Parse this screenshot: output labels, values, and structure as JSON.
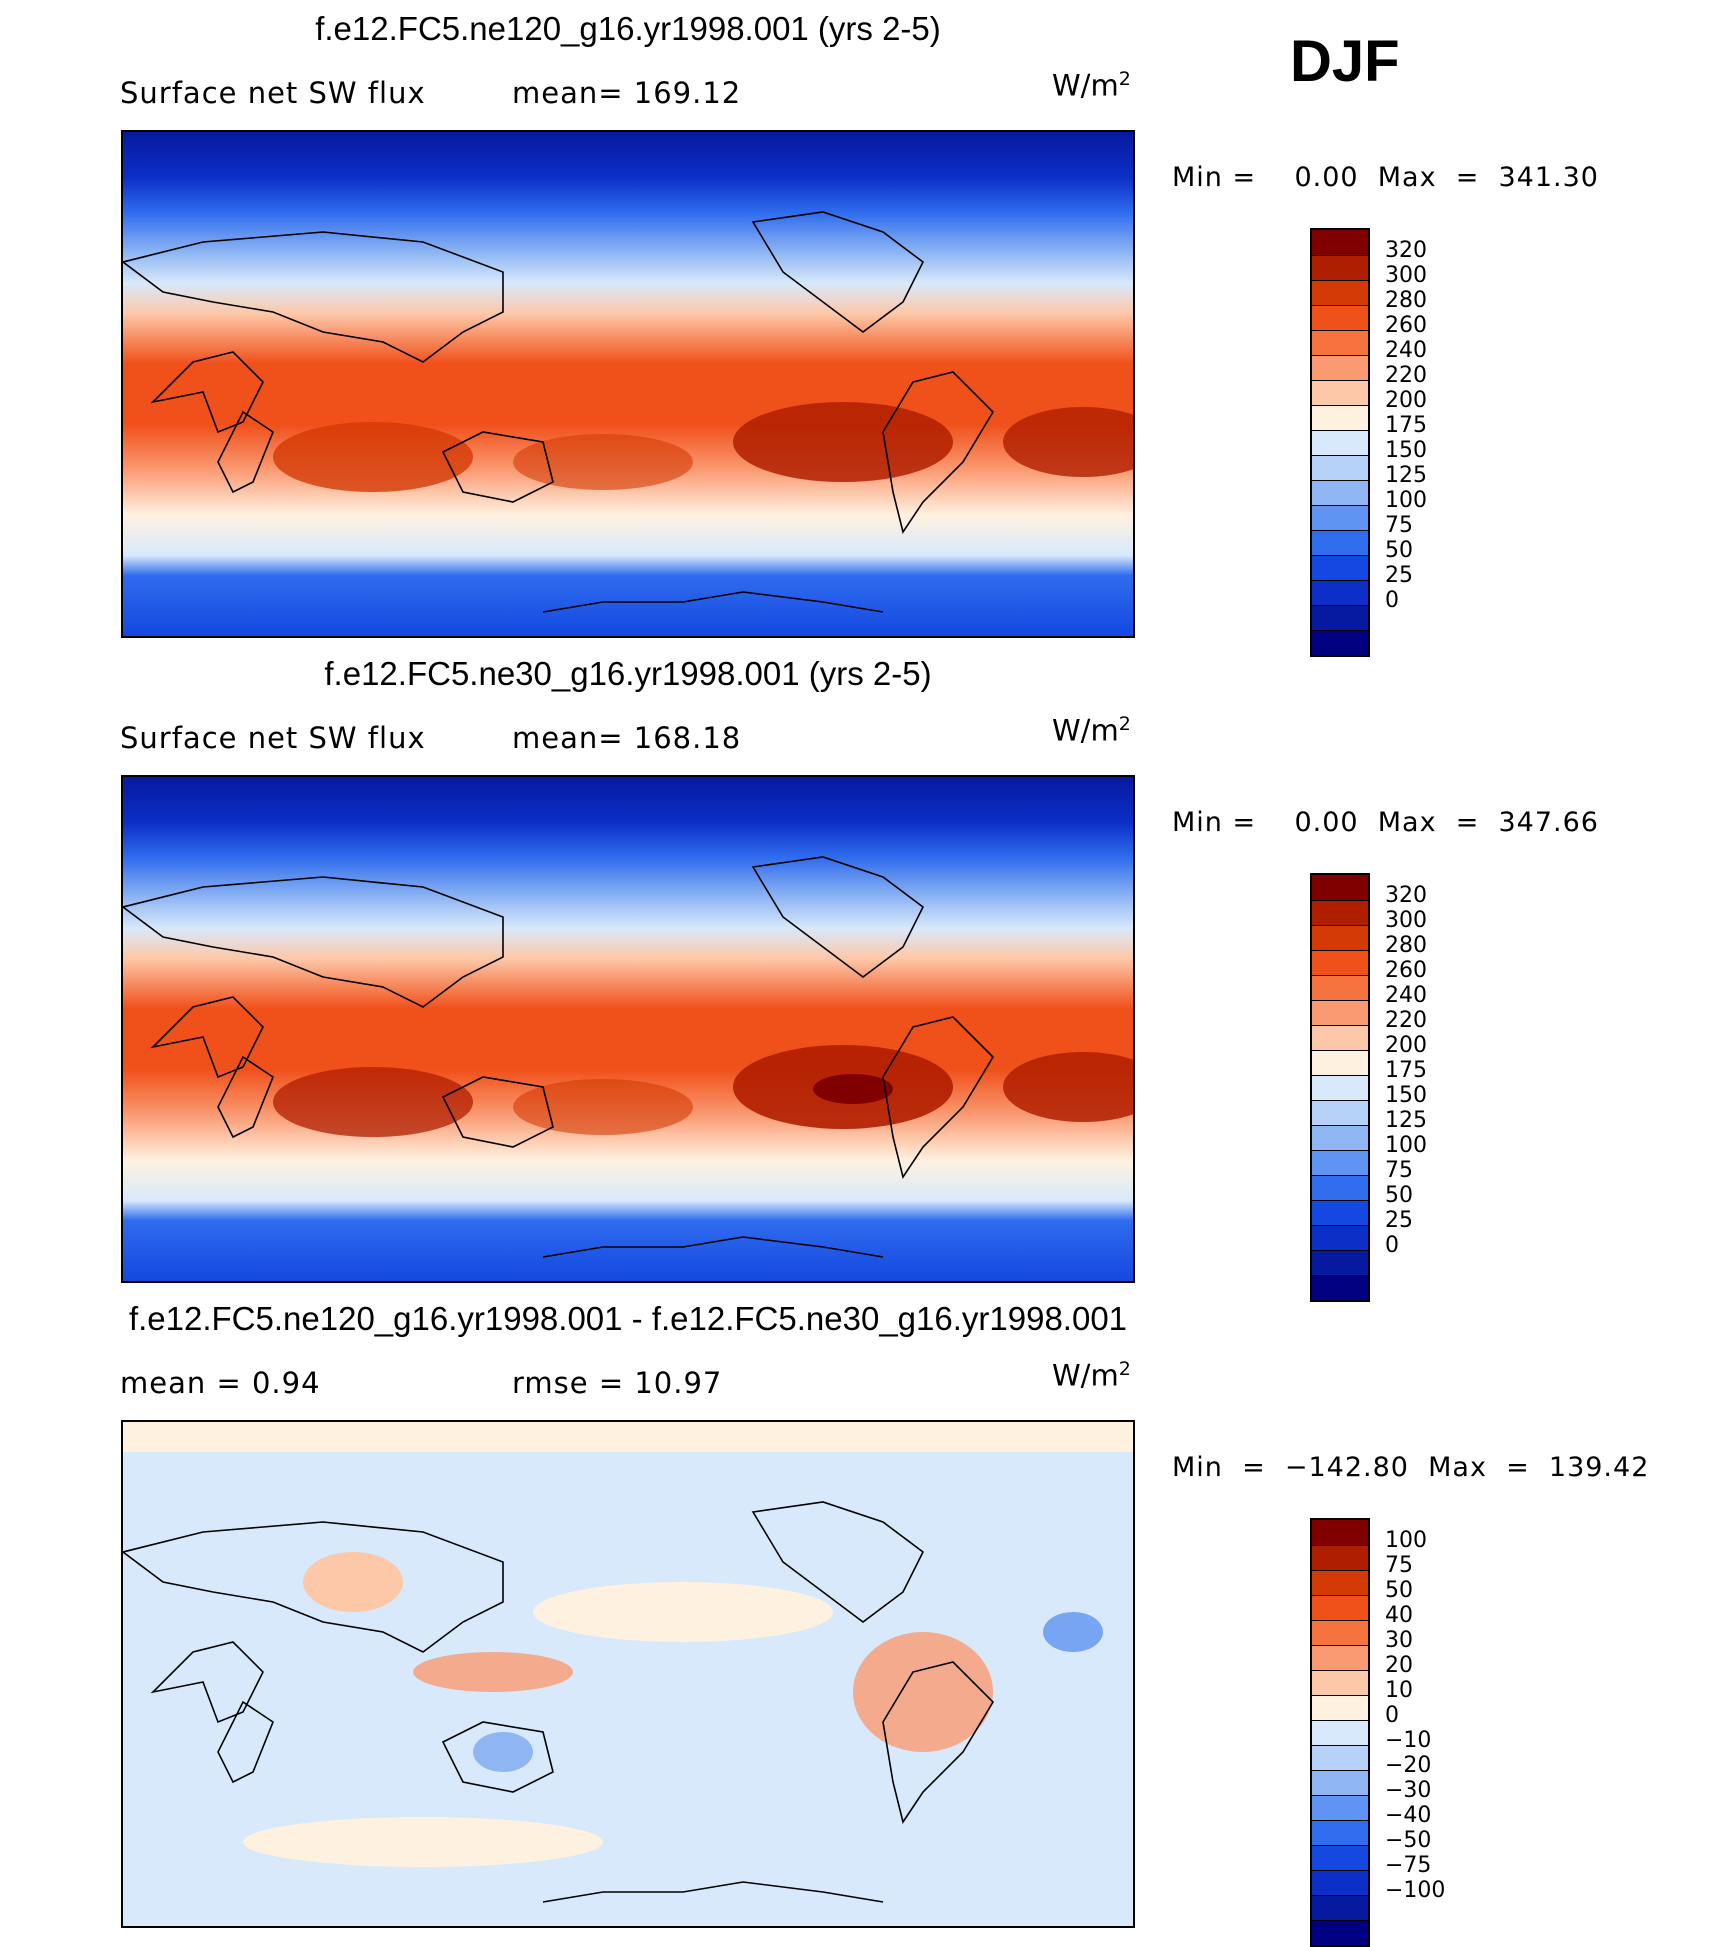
{
  "season": "DJF",
  "panels": [
    {
      "title": "f.e12.FC5.ne120_g16.yr1998.001 (yrs 2-5)",
      "left_text": "Surface net SW flux",
      "mid_text": "mean=  169.12",
      "units_main": "W/m",
      "units_sup": "2",
      "minmax": "Min =    0.00  Max  =  341.30",
      "colorbar_colors": [
        "#800000",
        "#b01e00",
        "#d43a05",
        "#f0501a",
        "#f6733f",
        "#fa9a72",
        "#fdc8a8",
        "#fff1e0",
        "#d8e9fb",
        "#b6d2f8",
        "#8fb6f3",
        "#5f94f2",
        "#2f6cee",
        "#1448e0",
        "#0c2fc7",
        "#061aa0",
        "#000080"
      ],
      "colorbar_labels": [
        "320",
        "300",
        "280",
        "260",
        "240",
        "220",
        "200",
        "175",
        "150",
        "125",
        "100",
        "75",
        "50",
        "25",
        "0"
      ]
    },
    {
      "title": "f.e12.FC5.ne30_g16.yr1998.001 (yrs 2-5)",
      "left_text": "Surface net SW flux",
      "mid_text": "mean=  168.18",
      "units_main": "W/m",
      "units_sup": "2",
      "minmax": "Min =    0.00  Max  =  347.66",
      "colorbar_colors": [
        "#800000",
        "#b01e00",
        "#d43a05",
        "#f0501a",
        "#f6733f",
        "#fa9a72",
        "#fdc8a8",
        "#fff1e0",
        "#d8e9fb",
        "#b6d2f8",
        "#8fb6f3",
        "#5f94f2",
        "#2f6cee",
        "#1448e0",
        "#0c2fc7",
        "#061aa0",
        "#000080"
      ],
      "colorbar_labels": [
        "320",
        "300",
        "280",
        "260",
        "240",
        "220",
        "200",
        "175",
        "150",
        "125",
        "100",
        "75",
        "50",
        "25",
        "0"
      ]
    },
    {
      "title": "f.e12.FC5.ne120_g16.yr1998.001 - f.e12.FC5.ne30_g16.yr1998.001",
      "left_text": "mean  =     0.94",
      "mid_text": "rmse  =    10.97",
      "units_main": "W/m",
      "units_sup": "2",
      "minmax": "Min  =  −142.80  Max  =  139.42",
      "colorbar_colors": [
        "#800000",
        "#b01e00",
        "#d43a05",
        "#f0501a",
        "#f6733f",
        "#fa9a72",
        "#fdc8a8",
        "#fff1e0",
        "#d8e9fb",
        "#b6d2f8",
        "#8fb6f3",
        "#5f94f2",
        "#2f6cee",
        "#1448e0",
        "#0c2fc7",
        "#061aa0",
        "#000080"
      ],
      "colorbar_labels": [
        "100",
        "75",
        "50",
        "40",
        "30",
        "20",
        "10",
        "0",
        "−10",
        "−20",
        "−30",
        "−40",
        "−50",
        "−75",
        "−100"
      ]
    }
  ]
}
